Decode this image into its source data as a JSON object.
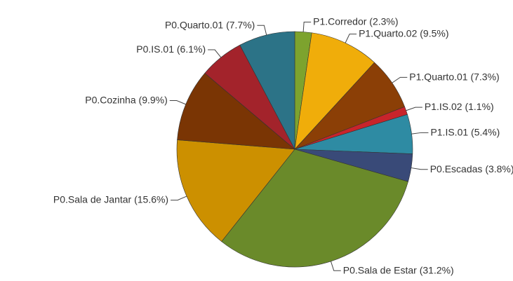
{
  "chart_data": {
    "type": "pie",
    "categories": [
      "P1.Corredor",
      "P1.Quarto.02",
      "P1.Quarto.01",
      "P1.IS.02",
      "P1.IS.01",
      "P0.Escadas",
      "P0.Sala de Estar",
      "P0.Sala de Jantar",
      "P0.Cozinha",
      "P0.IS.01",
      "P0.Quarto.01"
    ],
    "values": [
      2.3,
      9.5,
      7.3,
      1.1,
      5.4,
      3.8,
      31.2,
      15.6,
      9.9,
      6.1,
      7.7
    ],
    "value_labels": [
      "(2.3%)",
      "(9.5%)",
      "(7.3%)",
      "(1.1%)",
      "(5.4%)",
      "(3.8%)",
      "(31.2%)",
      "(15.6%)",
      "(9.9%)",
      "(6.1%)",
      "(7.7%)"
    ],
    "colors": [
      "#7da32e",
      "#f0ad0a",
      "#8b3f06",
      "#c8242b",
      "#2e8ba3",
      "#394a78",
      "#6a8a2a",
      "#cc9000",
      "#7a3504",
      "#a3232b",
      "#2c7387"
    ]
  }
}
